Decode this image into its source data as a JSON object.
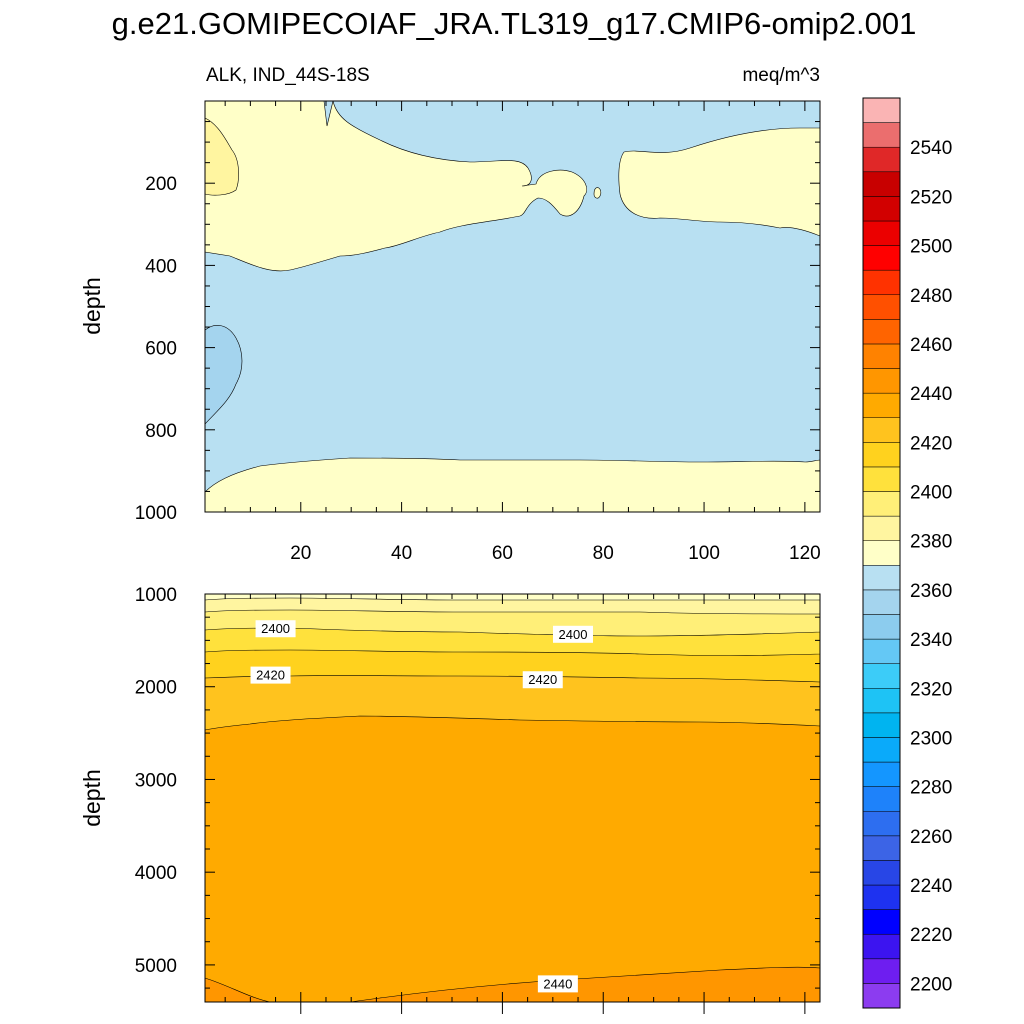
{
  "figure": {
    "title": "g.e21.GOMIPECOIAF_JRA.TL319_g17.CMIP6-omip2.001"
  },
  "chart_data": [
    {
      "type": "contour",
      "panel": "upper",
      "title_left": "ALK, IND_44S-18S",
      "title_right": "meq/m^3",
      "xlabel": "",
      "ylabel": "depth",
      "xlim": [
        1,
        123
      ],
      "ylim": [
        1000,
        0
      ],
      "x_ticks": [
        20,
        40,
        60,
        80,
        100,
        120
      ],
      "y_ticks": [
        200,
        400,
        600,
        800,
        1000
      ],
      "regions": [
        {
          "name": "upper-yellow-band",
          "level_range": [
            2370,
            2380
          ],
          "color": "#FFFFC8"
        },
        {
          "name": "upper-blue-band",
          "level_range": [
            2360,
            2370
          ],
          "color": "#B8E0F2"
        },
        {
          "name": "upper-left-yellow-patch",
          "level_range": [
            2380,
            2390
          ],
          "color": "#FFF5A0"
        },
        {
          "name": "upper-left-blue-patch",
          "level_range": [
            2350,
            2360
          ],
          "color": "#A4D4EE"
        },
        {
          "name": "lower-yellow-band",
          "level_range": [
            2370,
            2380
          ],
          "color": "#FFFFC8"
        }
      ],
      "contour_labels": []
    },
    {
      "type": "contour",
      "panel": "lower",
      "xlabel": "",
      "ylabel": "depth",
      "xlim": [
        1,
        123
      ],
      "ylim": [
        5400,
        1000
      ],
      "x_ticks": [
        20,
        40,
        60,
        80,
        100,
        120
      ],
      "y_ticks": [
        1000,
        2000,
        3000,
        4000,
        5000
      ],
      "bands": [
        {
          "level": 2380,
          "color": "#FFFFC8"
        },
        {
          "level": 2390,
          "color": "#FFF5A0"
        },
        {
          "level": 2400,
          "color": "#FFEF78"
        },
        {
          "level": 2410,
          "color": "#FFE13C"
        },
        {
          "level": 2420,
          "color": "#FFD21E"
        },
        {
          "level": 2430,
          "color": "#FFC31E"
        },
        {
          "level": 2440,
          "color": "#FFAA00"
        },
        {
          "level": 2450,
          "color": "#FF9600"
        }
      ],
      "contour_labels": [
        {
          "text": "2400",
          "x": 15,
          "depth": 1380
        },
        {
          "text": "2400",
          "x": 74,
          "depth": 1440
        },
        {
          "text": "2420",
          "x": 14,
          "depth": 1880
        },
        {
          "text": "2420",
          "x": 68,
          "depth": 1930
        },
        {
          "text": "2440",
          "x": 71,
          "depth": 5210
        }
      ]
    }
  ],
  "colorbar": {
    "levels": [
      2200,
      2210,
      2220,
      2230,
      2240,
      2250,
      2260,
      2270,
      2280,
      2290,
      2300,
      2310,
      2320,
      2330,
      2340,
      2350,
      2360,
      2370,
      2380,
      2390,
      2400,
      2410,
      2420,
      2430,
      2440,
      2450,
      2460,
      2470,
      2480,
      2490,
      2500,
      2510,
      2520,
      2530,
      2540,
      2550
    ],
    "labels": [
      "2200",
      "2220",
      "2240",
      "2260",
      "2280",
      "2300",
      "2320",
      "2340",
      "2360",
      "2380",
      "2400",
      "2420",
      "2440",
      "2460",
      "2480",
      "2500",
      "2520",
      "2540"
    ],
    "colors": [
      "#8C3CF0",
      "#6E1EF0",
      "#3C14F0",
      "#0000FF",
      "#1E32F0",
      "#2846E6",
      "#3C64E6",
      "#2D6EF0",
      "#1E82FA",
      "#1496FF",
      "#0AAAFA",
      "#00B4F0",
      "#1EC3F5",
      "#3CCCF8",
      "#64C8F5",
      "#8CCCEE",
      "#A4D4EE",
      "#B8E0F2",
      "#FFFFC8",
      "#FFF5A0",
      "#FFEF78",
      "#FFE13C",
      "#FFD21E",
      "#FFC31E",
      "#FFAA00",
      "#FF9600",
      "#FF8200",
      "#FF6400",
      "#FF5000",
      "#FF3200",
      "#FF0000",
      "#EB0000",
      "#D20000",
      "#C80000",
      "#E02828",
      "#EB6E6E",
      "#FAB4B4"
    ]
  }
}
